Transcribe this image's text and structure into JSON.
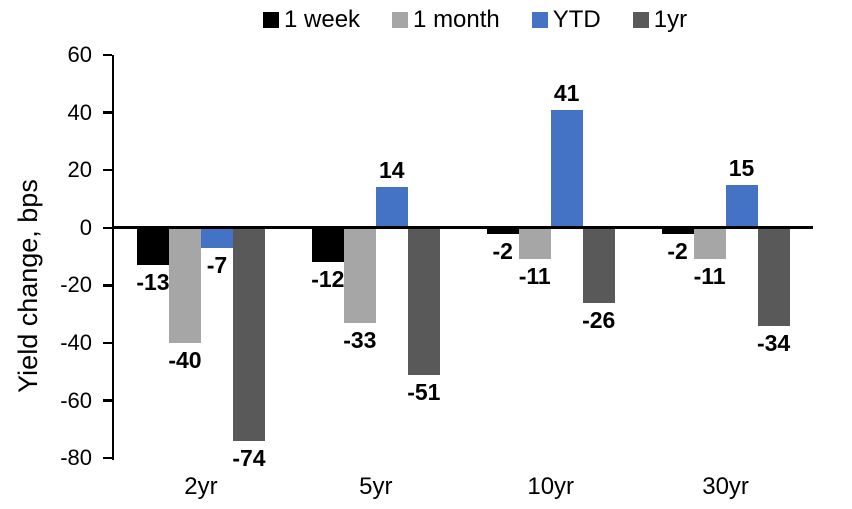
{
  "chart_data": {
    "type": "bar",
    "ylabel": "Yield change, bps",
    "categories": [
      "2yr",
      "5yr",
      "10yr",
      "30yr"
    ],
    "series": [
      {
        "name": "1 week",
        "color": "#000000",
        "values": [
          -13,
          -12,
          -2,
          -2
        ]
      },
      {
        "name": "1 month",
        "color": "#a6a6a6",
        "values": [
          -40,
          -33,
          -11,
          -11
        ]
      },
      {
        "name": "YTD",
        "color": "#4472c4",
        "values": [
          -7,
          14,
          41,
          15
        ]
      },
      {
        "name": "1yr",
        "color": "#595959",
        "values": [
          -74,
          -51,
          -26,
          -34
        ]
      }
    ],
    "ylim": [
      -80,
      60
    ],
    "yticks": [
      60,
      40,
      20,
      0,
      -20,
      -40,
      -60,
      -80
    ],
    "grid": false,
    "legend_position": "top",
    "bar_labels": "outside-end",
    "axis_color": "#000000",
    "label_color": "#000000"
  }
}
